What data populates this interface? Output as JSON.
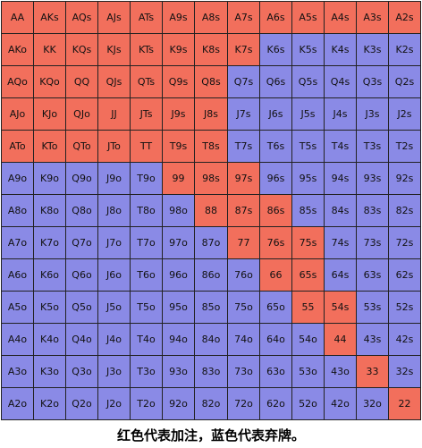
{
  "colors": {
    "raise": "#f26f5c",
    "fold": "#8a8ae6"
  },
  "caption": "红色代表加注，蓝色代表弃牌。",
  "rows": [
    [
      [
        "AA",
        "r"
      ],
      [
        "AKs",
        "r"
      ],
      [
        "AQs",
        "r"
      ],
      [
        "AJs",
        "r"
      ],
      [
        "ATs",
        "r"
      ],
      [
        "A9s",
        "r"
      ],
      [
        "A8s",
        "r"
      ],
      [
        "A7s",
        "r"
      ],
      [
        "A6s",
        "r"
      ],
      [
        "A5s",
        "r"
      ],
      [
        "A4s",
        "r"
      ],
      [
        "A3s",
        "r"
      ],
      [
        "A2s",
        "r"
      ]
    ],
    [
      [
        "AKo",
        "r"
      ],
      [
        "KK",
        "r"
      ],
      [
        "KQs",
        "r"
      ],
      [
        "KJs",
        "r"
      ],
      [
        "KTs",
        "r"
      ],
      [
        "K9s",
        "r"
      ],
      [
        "K8s",
        "r"
      ],
      [
        "K7s",
        "r"
      ],
      [
        "K6s",
        "f"
      ],
      [
        "K5s",
        "f"
      ],
      [
        "K4s",
        "f"
      ],
      [
        "K3s",
        "f"
      ],
      [
        "K2s",
        "f"
      ]
    ],
    [
      [
        "AQo",
        "r"
      ],
      [
        "KQo",
        "r"
      ],
      [
        "QQ",
        "r"
      ],
      [
        "QJs",
        "r"
      ],
      [
        "QTs",
        "r"
      ],
      [
        "Q9s",
        "r"
      ],
      [
        "Q8s",
        "r"
      ],
      [
        "Q7s",
        "f"
      ],
      [
        "Q6s",
        "f"
      ],
      [
        "Q5s",
        "f"
      ],
      [
        "Q4s",
        "f"
      ],
      [
        "Q3s",
        "f"
      ],
      [
        "Q2s",
        "f"
      ]
    ],
    [
      [
        "AJo",
        "r"
      ],
      [
        "KJo",
        "r"
      ],
      [
        "QJo",
        "r"
      ],
      [
        "JJ",
        "r"
      ],
      [
        "JTs",
        "r"
      ],
      [
        "J9s",
        "r"
      ],
      [
        "J8s",
        "r"
      ],
      [
        "J7s",
        "f"
      ],
      [
        "J6s",
        "f"
      ],
      [
        "J5s",
        "f"
      ],
      [
        "J4s",
        "f"
      ],
      [
        "J3s",
        "f"
      ],
      [
        "J2s",
        "f"
      ]
    ],
    [
      [
        "ATo",
        "r"
      ],
      [
        "KTo",
        "r"
      ],
      [
        "QTo",
        "r"
      ],
      [
        "JTo",
        "r"
      ],
      [
        "TT",
        "r"
      ],
      [
        "T9s",
        "r"
      ],
      [
        "T8s",
        "r"
      ],
      [
        "T7s",
        "f"
      ],
      [
        "T6s",
        "f"
      ],
      [
        "T5s",
        "f"
      ],
      [
        "T4s",
        "f"
      ],
      [
        "T3s",
        "f"
      ],
      [
        "T2s",
        "f"
      ]
    ],
    [
      [
        "A9o",
        "f"
      ],
      [
        "K9o",
        "f"
      ],
      [
        "Q9o",
        "f"
      ],
      [
        "J9o",
        "f"
      ],
      [
        "T9o",
        "f"
      ],
      [
        "99",
        "r"
      ],
      [
        "98s",
        "r"
      ],
      [
        "97s",
        "r"
      ],
      [
        "96s",
        "f"
      ],
      [
        "95s",
        "f"
      ],
      [
        "94s",
        "f"
      ],
      [
        "93s",
        "f"
      ],
      [
        "92s",
        "f"
      ]
    ],
    [
      [
        "A8o",
        "f"
      ],
      [
        "K8o",
        "f"
      ],
      [
        "Q8o",
        "f"
      ],
      [
        "J8o",
        "f"
      ],
      [
        "T8o",
        "f"
      ],
      [
        "98o",
        "f"
      ],
      [
        "88",
        "r"
      ],
      [
        "87s",
        "r"
      ],
      [
        "86s",
        "r"
      ],
      [
        "85s",
        "f"
      ],
      [
        "84s",
        "f"
      ],
      [
        "83s",
        "f"
      ],
      [
        "82s",
        "f"
      ]
    ],
    [
      [
        "A7o",
        "f"
      ],
      [
        "K7o",
        "f"
      ],
      [
        "Q7o",
        "f"
      ],
      [
        "J7o",
        "f"
      ],
      [
        "T7o",
        "f"
      ],
      [
        "97o",
        "f"
      ],
      [
        "87o",
        "f"
      ],
      [
        "77",
        "r"
      ],
      [
        "76s",
        "r"
      ],
      [
        "75s",
        "r"
      ],
      [
        "74s",
        "f"
      ],
      [
        "73s",
        "f"
      ],
      [
        "72s",
        "f"
      ]
    ],
    [
      [
        "A6o",
        "f"
      ],
      [
        "K6o",
        "f"
      ],
      [
        "Q6o",
        "f"
      ],
      [
        "J6o",
        "f"
      ],
      [
        "T6o",
        "f"
      ],
      [
        "96o",
        "f"
      ],
      [
        "86o",
        "f"
      ],
      [
        "76o",
        "f"
      ],
      [
        "66",
        "r"
      ],
      [
        "65s",
        "r"
      ],
      [
        "64s",
        "f"
      ],
      [
        "63s",
        "f"
      ],
      [
        "62s",
        "f"
      ]
    ],
    [
      [
        "A5o",
        "f"
      ],
      [
        "K5o",
        "f"
      ],
      [
        "Q5o",
        "f"
      ],
      [
        "J5o",
        "f"
      ],
      [
        "T5o",
        "f"
      ],
      [
        "95o",
        "f"
      ],
      [
        "85o",
        "f"
      ],
      [
        "75o",
        "f"
      ],
      [
        "65o",
        "f"
      ],
      [
        "55",
        "r"
      ],
      [
        "54s",
        "r"
      ],
      [
        "53s",
        "f"
      ],
      [
        "52s",
        "f"
      ]
    ],
    [
      [
        "A4o",
        "f"
      ],
      [
        "K4o",
        "f"
      ],
      [
        "Q4o",
        "f"
      ],
      [
        "J4o",
        "f"
      ],
      [
        "T4o",
        "f"
      ],
      [
        "94o",
        "f"
      ],
      [
        "84o",
        "f"
      ],
      [
        "74o",
        "f"
      ],
      [
        "64o",
        "f"
      ],
      [
        "54o",
        "f"
      ],
      [
        "44",
        "r"
      ],
      [
        "43s",
        "f"
      ],
      [
        "42s",
        "f"
      ]
    ],
    [
      [
        "A3o",
        "f"
      ],
      [
        "K3o",
        "f"
      ],
      [
        "Q3o",
        "f"
      ],
      [
        "J3o",
        "f"
      ],
      [
        "T3o",
        "f"
      ],
      [
        "93o",
        "f"
      ],
      [
        "83o",
        "f"
      ],
      [
        "73o",
        "f"
      ],
      [
        "63o",
        "f"
      ],
      [
        "53o",
        "f"
      ],
      [
        "43o",
        "f"
      ],
      [
        "33",
        "r"
      ],
      [
        "32s",
        "f"
      ]
    ],
    [
      [
        "A2o",
        "f"
      ],
      [
        "K2o",
        "f"
      ],
      [
        "Q2o",
        "f"
      ],
      [
        "J2o",
        "f"
      ],
      [
        "T2o",
        "f"
      ],
      [
        "92o",
        "f"
      ],
      [
        "82o",
        "f"
      ],
      [
        "72o",
        "f"
      ],
      [
        "62o",
        "f"
      ],
      [
        "52o",
        "f"
      ],
      [
        "42o",
        "f"
      ],
      [
        "32o",
        "f"
      ],
      [
        "22",
        "r"
      ]
    ]
  ]
}
